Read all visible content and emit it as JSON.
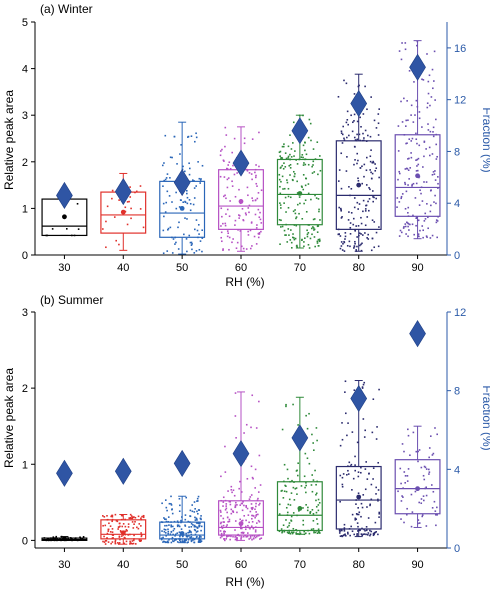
{
  "colors": {
    "axis": "#000000",
    "fraction_axis": "#2b5aa8",
    "diamond": "#2f55a4",
    "rh_colors": {
      "30": "#000000",
      "40": "#e0302b",
      "50": "#2a66b8",
      "60": "#b651c4",
      "70": "#2f8a3a",
      "80": "#2b2b6e",
      "90": "#6b4fb0"
    }
  },
  "chart_data": [
    {
      "type": "box",
      "panel_label": "(a) Winter",
      "xlabel": "RH (%)",
      "ylabel": "Relative peak area",
      "y2label": "Fraction (%)",
      "categories": [
        "30",
        "40",
        "50",
        "60",
        "70",
        "80",
        "90"
      ],
      "ylim": [
        0,
        5
      ],
      "yticks": [
        0,
        1,
        2,
        3,
        4,
        5
      ],
      "y2lim": [
        0,
        18
      ],
      "y2ticks": [
        0,
        4,
        8,
        12,
        16
      ],
      "boxes": [
        {
          "rh": "30",
          "q1": 0.42,
          "median": 0.62,
          "q3": 1.2,
          "mean": 0.82,
          "whisker_low": 0.42,
          "whisker_high": 1.38,
          "n_points": 8
        },
        {
          "rh": "40",
          "q1": 0.47,
          "median": 0.86,
          "q3": 1.35,
          "mean": 0.92,
          "whisker_low": 0.1,
          "whisker_high": 1.75,
          "n_points": 26
        },
        {
          "rh": "50",
          "q1": 0.38,
          "median": 0.9,
          "q3": 1.58,
          "mean": 1.0,
          "whisker_low": 0.02,
          "whisker_high": 2.85,
          "n_points": 110
        },
        {
          "rh": "60",
          "q1": 0.55,
          "median": 1.05,
          "q3": 1.83,
          "mean": 1.15,
          "whisker_low": 0.08,
          "whisker_high": 2.75,
          "n_points": 130
        },
        {
          "rh": "70",
          "q1": 0.65,
          "median": 1.3,
          "q3": 2.05,
          "mean": 1.32,
          "whisker_low": 0.15,
          "whisker_high": 3.0,
          "n_points": 190
        },
        {
          "rh": "80",
          "q1": 0.55,
          "median": 1.28,
          "q3": 2.45,
          "mean": 1.5,
          "whisker_low": 0.08,
          "whisker_high": 3.88,
          "n_points": 190
        },
        {
          "rh": "90",
          "q1": 0.83,
          "median": 1.45,
          "q3": 2.58,
          "mean": 1.7,
          "whisker_low": 0.35,
          "whisker_high": 4.6,
          "n_points": 180
        }
      ],
      "fraction_series": {
        "marker": "diamond",
        "values": [
          4.6,
          4.9,
          5.6,
          7.1,
          9.6,
          11.7,
          14.5
        ]
      }
    },
    {
      "type": "box",
      "panel_label": "(b) Summer",
      "xlabel": "RH (%)",
      "ylabel": "Relative peak area",
      "y2label": "Fraction (%)",
      "categories": [
        "30",
        "40",
        "50",
        "60",
        "70",
        "80",
        "90"
      ],
      "ylim": [
        -0.1,
        3
      ],
      "yticks": [
        0,
        1,
        2,
        3
      ],
      "y2lim": [
        0,
        12
      ],
      "y2ticks": [
        0,
        4,
        8,
        12
      ],
      "boxes": [
        {
          "rh": "30",
          "q1": 0.0,
          "median": 0.01,
          "q3": 0.03,
          "mean": 0.02,
          "whisker_low": 0.0,
          "whisker_high": 0.05,
          "n_points": 60
        },
        {
          "rh": "40",
          "q1": 0.02,
          "median": 0.08,
          "q3": 0.27,
          "mean": 0.1,
          "whisker_low": -0.05,
          "whisker_high": 0.34,
          "n_points": 130
        },
        {
          "rh": "50",
          "q1": 0.02,
          "median": 0.07,
          "q3": 0.24,
          "mean": 0.09,
          "whisker_low": -0.03,
          "whisker_high": 0.58,
          "n_points": 200
        },
        {
          "rh": "60",
          "q1": 0.07,
          "median": 0.17,
          "q3": 0.52,
          "mean": 0.22,
          "whisker_low": 0.0,
          "whisker_high": 1.95,
          "n_points": 200
        },
        {
          "rh": "70",
          "q1": 0.13,
          "median": 0.33,
          "q3": 0.77,
          "mean": 0.42,
          "whisker_low": 0.08,
          "whisker_high": 1.88,
          "n_points": 140
        },
        {
          "rh": "80",
          "q1": 0.15,
          "median": 0.53,
          "q3": 0.97,
          "mean": 0.57,
          "whisker_low": 0.05,
          "whisker_high": 2.1,
          "n_points": 140
        },
        {
          "rh": "90",
          "q1": 0.35,
          "median": 0.68,
          "q3": 1.06,
          "mean": 0.68,
          "whisker_low": 0.17,
          "whisker_high": 1.5,
          "n_points": 70
        }
      ],
      "fraction_series": {
        "marker": "diamond",
        "values": [
          3.8,
          3.9,
          4.3,
          4.8,
          5.6,
          7.6,
          10.9
        ]
      }
    }
  ]
}
